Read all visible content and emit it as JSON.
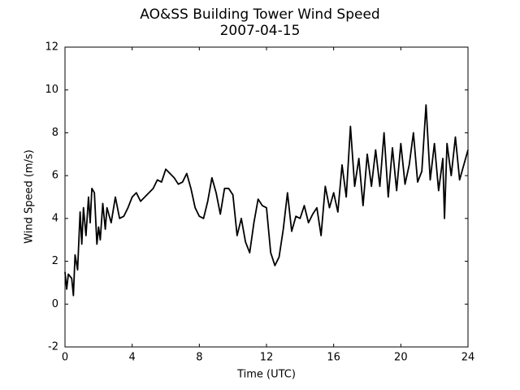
{
  "chart_data": {
    "type": "line",
    "title": "AO&SS Building Tower Wind Speed",
    "subtitle": "2007-04-15",
    "x_label": "Time (UTC)",
    "y_label": "Wind Speed (m/s)",
    "xlim": [
      0,
      24
    ],
    "xticks": [
      0,
      4,
      8,
      12,
      16,
      20,
      24
    ],
    "ylim": [
      -2,
      12
    ],
    "yticks": [
      -2,
      0,
      2,
      4,
      6,
      8,
      10,
      12
    ],
    "grid": false,
    "series": [
      {
        "color": "#000000",
        "x": [
          0,
          0.1,
          0.2,
          0.4,
          0.5,
          0.6,
          0.75,
          0.9,
          1.0,
          1.1,
          1.25,
          1.4,
          1.5,
          1.6,
          1.75,
          1.9,
          2.0,
          2.1,
          2.25,
          2.4,
          2.5,
          2.75,
          3.0,
          3.25,
          3.5,
          3.75,
          4.0,
          4.25,
          4.5,
          4.75,
          5.0,
          5.25,
          5.5,
          5.75,
          6.0,
          6.25,
          6.5,
          6.75,
          7.0,
          7.25,
          7.5,
          7.75,
          8.0,
          8.25,
          8.5,
          8.75,
          9.0,
          9.25,
          9.5,
          9.75,
          10.0,
          10.25,
          10.5,
          10.75,
          11.0,
          11.25,
          11.5,
          11.75,
          12.0,
          12.25,
          12.5,
          12.75,
          13.0,
          13.25,
          13.5,
          13.75,
          14.0,
          14.25,
          14.5,
          14.75,
          15.0,
          15.25,
          15.5,
          15.75,
          16.0,
          16.25,
          16.5,
          16.75,
          17.0,
          17.25,
          17.5,
          17.75,
          18.0,
          18.25,
          18.5,
          18.75,
          19.0,
          19.25,
          19.5,
          19.75,
          20.0,
          20.25,
          20.5,
          20.75,
          21.0,
          21.25,
          21.5,
          21.75,
          22.0,
          22.25,
          22.5,
          22.6,
          22.75,
          23.0,
          23.25,
          23.5,
          23.75,
          24.0
        ],
        "values": [
          1.5,
          0.7,
          1.4,
          1.2,
          0.4,
          2.3,
          1.6,
          4.3,
          2.8,
          4.5,
          3.2,
          5.0,
          3.8,
          5.4,
          5.2,
          2.8,
          3.6,
          3.0,
          4.7,
          3.5,
          4.5,
          3.8,
          5.0,
          4.0,
          4.1,
          4.5,
          5.0,
          5.2,
          4.8,
          5.0,
          5.2,
          5.4,
          5.8,
          5.7,
          6.3,
          6.1,
          5.9,
          5.6,
          5.7,
          6.1,
          5.4,
          4.5,
          4.1,
          4.0,
          4.8,
          5.9,
          5.2,
          4.2,
          5.4,
          5.4,
          5.1,
          3.2,
          4.0,
          2.9,
          2.4,
          3.8,
          4.9,
          4.6,
          4.5,
          2.4,
          1.8,
          2.2,
          3.5,
          5.2,
          3.4,
          4.1,
          4.0,
          4.6,
          3.8,
          4.2,
          4.5,
          3.2,
          5.5,
          4.5,
          5.2,
          4.3,
          6.5,
          5.0,
          8.3,
          5.5,
          6.8,
          4.6,
          7.0,
          5.5,
          7.2,
          5.5,
          8.0,
          5.0,
          7.3,
          5.3,
          7.5,
          5.6,
          6.5,
          8.0,
          5.7,
          6.2,
          9.3,
          5.8,
          7.5,
          5.3,
          6.8,
          4.0,
          7.5,
          6.0,
          7.8,
          5.8,
          6.5,
          7.2
        ]
      }
    ]
  }
}
